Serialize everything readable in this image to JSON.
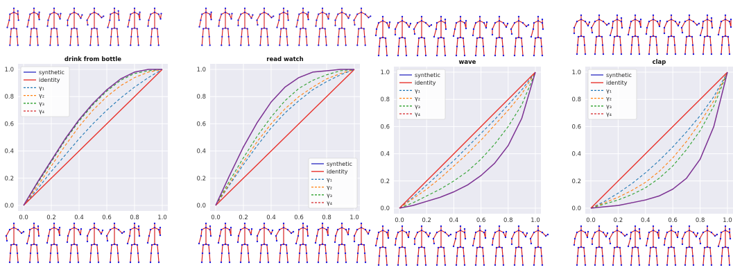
{
  "legend_labels": [
    "synthetic",
    "identity",
    "γ₁",
    "γ₂",
    "γ₃",
    "γ₄"
  ],
  "colors": {
    "synthetic": "#1f1fbf",
    "identity": "#e8302a",
    "g1": "#1f77b4",
    "g2": "#ff7f0e",
    "g3": "#2ca02c",
    "g4": "#d62728",
    "synthetic_overlap": "#7b3294",
    "plot_bg": "#eaeaf2",
    "skeleton_line": "#d62020",
    "skeleton_joint": "#1a1ae0"
  },
  "chart_data": [
    {
      "type": "line",
      "title": "drink from bottle",
      "xlabel": "",
      "ylabel": "",
      "xlim": [
        0,
        1
      ],
      "ylim": [
        0,
        1
      ],
      "xticks": [
        "0.0",
        "0.2",
        "0.4",
        "0.6",
        "0.8",
        "1.0"
      ],
      "yticks": [
        "0.0",
        "0.2",
        "0.4",
        "0.6",
        "0.8",
        "1.0"
      ],
      "grid": true,
      "legend_position": "upper-left",
      "series": [
        {
          "name": "synthetic",
          "x": [
            0,
            0.1,
            0.2,
            0.3,
            0.4,
            0.5,
            0.6,
            0.7,
            0.8,
            0.9,
            1.0
          ],
          "y": [
            0,
            0.17,
            0.33,
            0.49,
            0.63,
            0.75,
            0.85,
            0.93,
            0.98,
            1.0,
            1.0
          ]
        },
        {
          "name": "identity",
          "x": [
            0,
            0.1,
            0.2,
            0.3,
            0.4,
            0.5,
            0.6,
            0.7,
            0.8,
            0.9,
            1.0
          ],
          "y": [
            0,
            0.1,
            0.2,
            0.3,
            0.4,
            0.5,
            0.6,
            0.7,
            0.8,
            0.9,
            1.0
          ]
        },
        {
          "name": "γ₁",
          "x": [
            0,
            0.1,
            0.2,
            0.3,
            0.4,
            0.5,
            0.6,
            0.7,
            0.8,
            0.9,
            1.0
          ],
          "y": [
            0,
            0.12,
            0.25,
            0.37,
            0.49,
            0.6,
            0.7,
            0.79,
            0.87,
            0.94,
            1.0
          ]
        },
        {
          "name": "γ₂",
          "x": [
            0,
            0.1,
            0.2,
            0.3,
            0.4,
            0.5,
            0.6,
            0.7,
            0.8,
            0.9,
            1.0
          ],
          "y": [
            0,
            0.14,
            0.29,
            0.44,
            0.58,
            0.7,
            0.8,
            0.88,
            0.94,
            0.98,
            1.0
          ]
        },
        {
          "name": "γ₃",
          "x": [
            0,
            0.1,
            0.2,
            0.3,
            0.4,
            0.5,
            0.6,
            0.7,
            0.8,
            0.9,
            1.0
          ],
          "y": [
            0,
            0.16,
            0.32,
            0.48,
            0.62,
            0.74,
            0.84,
            0.92,
            0.97,
            0.99,
            1.0
          ]
        },
        {
          "name": "γ₄",
          "x": [
            0,
            0.1,
            0.2,
            0.3,
            0.4,
            0.5,
            0.6,
            0.7,
            0.8,
            0.9,
            1.0
          ],
          "y": [
            0,
            0.17,
            0.33,
            0.49,
            0.63,
            0.75,
            0.85,
            0.93,
            0.98,
            1.0,
            1.0
          ]
        }
      ]
    },
    {
      "type": "line",
      "title": "read watch",
      "xlabel": "",
      "ylabel": "",
      "xlim": [
        0,
        1
      ],
      "ylim": [
        0,
        1
      ],
      "xticks": [
        "0.0",
        "0.2",
        "0.4",
        "0.6",
        "0.8",
        "1.0"
      ],
      "yticks": [
        "0.0",
        "0.2",
        "0.4",
        "0.6",
        "0.8",
        "1.0"
      ],
      "grid": true,
      "legend_position": "lower-right",
      "series": [
        {
          "name": "synthetic",
          "x": [
            0,
            0.1,
            0.2,
            0.3,
            0.4,
            0.5,
            0.6,
            0.7,
            0.8,
            0.9,
            1.0
          ],
          "y": [
            0,
            0.22,
            0.43,
            0.61,
            0.76,
            0.87,
            0.94,
            0.98,
            0.99,
            1.0,
            1.0
          ]
        },
        {
          "name": "identity",
          "x": [
            0,
            0.1,
            0.2,
            0.3,
            0.4,
            0.5,
            0.6,
            0.7,
            0.8,
            0.9,
            1.0
          ],
          "y": [
            0,
            0.1,
            0.2,
            0.3,
            0.4,
            0.5,
            0.6,
            0.7,
            0.8,
            0.9,
            1.0
          ]
        },
        {
          "name": "γ₁",
          "x": [
            0,
            0.1,
            0.2,
            0.3,
            0.4,
            0.5,
            0.6,
            0.7,
            0.8,
            0.9,
            1.0
          ],
          "y": [
            0,
            0.15,
            0.3,
            0.44,
            0.57,
            0.68,
            0.77,
            0.85,
            0.91,
            0.96,
            1.0
          ]
        },
        {
          "name": "γ₂",
          "x": [
            0,
            0.1,
            0.2,
            0.3,
            0.4,
            0.5,
            0.6,
            0.7,
            0.8,
            0.9,
            1.0
          ],
          "y": [
            0,
            0.16,
            0.32,
            0.47,
            0.6,
            0.71,
            0.8,
            0.87,
            0.93,
            0.97,
            1.0
          ]
        },
        {
          "name": "γ₃",
          "x": [
            0,
            0.1,
            0.2,
            0.3,
            0.4,
            0.5,
            0.6,
            0.7,
            0.8,
            0.9,
            1.0
          ],
          "y": [
            0,
            0.18,
            0.35,
            0.51,
            0.65,
            0.77,
            0.86,
            0.92,
            0.96,
            0.99,
            1.0
          ]
        },
        {
          "name": "γ₄",
          "x": [
            0,
            0.1,
            0.2,
            0.3,
            0.4,
            0.5,
            0.6,
            0.7,
            0.8,
            0.9,
            1.0
          ],
          "y": [
            0,
            0.22,
            0.43,
            0.61,
            0.76,
            0.87,
            0.94,
            0.98,
            0.99,
            1.0,
            1.0
          ]
        }
      ]
    },
    {
      "type": "line",
      "title": "wave",
      "xlabel": "",
      "ylabel": "",
      "xlim": [
        0,
        1
      ],
      "ylim": [
        0,
        1
      ],
      "xticks": [
        "0.0",
        "0.2",
        "0.4",
        "0.6",
        "0.8",
        "1.0"
      ],
      "yticks": [
        "0.0",
        "0.2",
        "0.4",
        "0.6",
        "0.8",
        "1.0"
      ],
      "grid": true,
      "legend_position": "upper-left",
      "series": [
        {
          "name": "synthetic",
          "x": [
            0,
            0.1,
            0.2,
            0.3,
            0.4,
            0.5,
            0.6,
            0.7,
            0.8,
            0.9,
            1.0
          ],
          "y": [
            0,
            0.02,
            0.05,
            0.08,
            0.12,
            0.17,
            0.24,
            0.33,
            0.46,
            0.66,
            1.0
          ]
        },
        {
          "name": "identity",
          "x": [
            0,
            0.1,
            0.2,
            0.3,
            0.4,
            0.5,
            0.6,
            0.7,
            0.8,
            0.9,
            1.0
          ],
          "y": [
            0,
            0.1,
            0.2,
            0.3,
            0.4,
            0.5,
            0.6,
            0.7,
            0.8,
            0.9,
            1.0
          ]
        },
        {
          "name": "γ₁",
          "x": [
            0,
            0.1,
            0.2,
            0.3,
            0.4,
            0.5,
            0.6,
            0.7,
            0.8,
            0.9,
            1.0
          ],
          "y": [
            0,
            0.08,
            0.17,
            0.26,
            0.35,
            0.45,
            0.55,
            0.65,
            0.76,
            0.87,
            1.0
          ]
        },
        {
          "name": "γ₂",
          "x": [
            0,
            0.1,
            0.2,
            0.3,
            0.4,
            0.5,
            0.6,
            0.7,
            0.8,
            0.9,
            1.0
          ],
          "y": [
            0,
            0.07,
            0.14,
            0.22,
            0.31,
            0.4,
            0.5,
            0.61,
            0.72,
            0.84,
            1.0
          ]
        },
        {
          "name": "γ₃",
          "x": [
            0,
            0.1,
            0.2,
            0.3,
            0.4,
            0.5,
            0.6,
            0.7,
            0.8,
            0.9,
            1.0
          ],
          "y": [
            0,
            0.04,
            0.09,
            0.14,
            0.2,
            0.27,
            0.36,
            0.47,
            0.6,
            0.76,
            1.0
          ]
        },
        {
          "name": "γ₄",
          "x": [
            0,
            0.1,
            0.2,
            0.3,
            0.4,
            0.5,
            0.6,
            0.7,
            0.8,
            0.9,
            1.0
          ],
          "y": [
            0,
            0.02,
            0.05,
            0.08,
            0.12,
            0.17,
            0.24,
            0.33,
            0.46,
            0.66,
            1.0
          ]
        }
      ]
    },
    {
      "type": "line",
      "title": "clap",
      "xlabel": "",
      "ylabel": "",
      "xlim": [
        0,
        1
      ],
      "ylim": [
        0,
        1
      ],
      "xticks": [
        "0.0",
        "0.2",
        "0.4",
        "0.6",
        "0.8",
        "1.0"
      ],
      "yticks": [
        "0.0",
        "0.2",
        "0.4",
        "0.6",
        "0.8",
        "1.0"
      ],
      "grid": true,
      "legend_position": "upper-left",
      "series": [
        {
          "name": "synthetic",
          "x": [
            0,
            0.1,
            0.2,
            0.3,
            0.4,
            0.5,
            0.6,
            0.7,
            0.8,
            0.9,
            1.0
          ],
          "y": [
            0,
            0.01,
            0.02,
            0.04,
            0.06,
            0.09,
            0.14,
            0.22,
            0.36,
            0.6,
            1.0
          ]
        },
        {
          "name": "identity",
          "x": [
            0,
            0.1,
            0.2,
            0.3,
            0.4,
            0.5,
            0.6,
            0.7,
            0.8,
            0.9,
            1.0
          ],
          "y": [
            0,
            0.1,
            0.2,
            0.3,
            0.4,
            0.5,
            0.6,
            0.7,
            0.8,
            0.9,
            1.0
          ]
        },
        {
          "name": "γ₁",
          "x": [
            0,
            0.1,
            0.2,
            0.3,
            0.4,
            0.5,
            0.6,
            0.7,
            0.8,
            0.9,
            1.0
          ],
          "y": [
            0,
            0.05,
            0.11,
            0.18,
            0.26,
            0.35,
            0.45,
            0.56,
            0.68,
            0.82,
            1.0
          ]
        },
        {
          "name": "γ₂",
          "x": [
            0,
            0.1,
            0.2,
            0.3,
            0.4,
            0.5,
            0.6,
            0.7,
            0.8,
            0.9,
            1.0
          ],
          "y": [
            0,
            0.04,
            0.08,
            0.13,
            0.19,
            0.27,
            0.37,
            0.49,
            0.63,
            0.79,
            1.0
          ]
        },
        {
          "name": "γ₃",
          "x": [
            0,
            0.1,
            0.2,
            0.3,
            0.4,
            0.5,
            0.6,
            0.7,
            0.8,
            0.9,
            1.0
          ],
          "y": [
            0,
            0.03,
            0.06,
            0.1,
            0.15,
            0.22,
            0.31,
            0.43,
            0.57,
            0.75,
            1.0
          ]
        },
        {
          "name": "γ₄",
          "x": [
            0,
            0.1,
            0.2,
            0.3,
            0.4,
            0.5,
            0.6,
            0.7,
            0.8,
            0.9,
            1.0
          ],
          "y": [
            0,
            0.01,
            0.02,
            0.04,
            0.06,
            0.09,
            0.14,
            0.22,
            0.36,
            0.6,
            1.0
          ]
        }
      ]
    }
  ]
}
